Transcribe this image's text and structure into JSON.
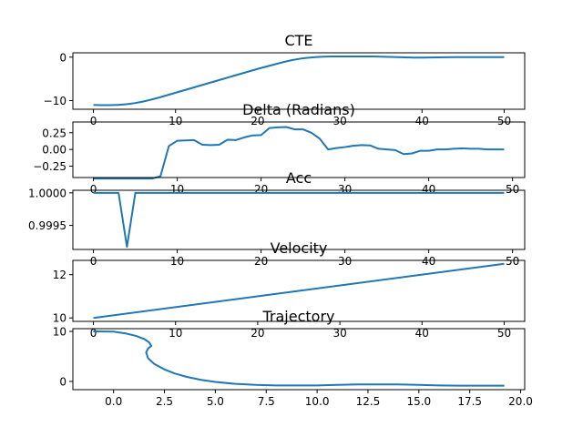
{
  "chart_data": [
    {
      "type": "line",
      "title": "CTE",
      "xlabel": "",
      "ylabel": "",
      "xlim": [
        -2.5,
        52.5
      ],
      "ylim": [
        -12.0,
        1.0
      ],
      "xticks": [
        0,
        10,
        20,
        30,
        40,
        50
      ],
      "xticklabels": [
        "0",
        "10",
        "20",
        "30",
        "40",
        "50"
      ],
      "yticks": [
        -10,
        0
      ],
      "yticklabels": [
        "−10",
        "0"
      ],
      "grid": false,
      "color": "#1f77b4",
      "series": [
        {
          "x": [
            0,
            1,
            2,
            3,
            4,
            5,
            6,
            7,
            8,
            9,
            10,
            11,
            12,
            13,
            14,
            15,
            16,
            17,
            18,
            19,
            20,
            21,
            22,
            23,
            24,
            25,
            26,
            27,
            28,
            29,
            30,
            31,
            32,
            33,
            34,
            35,
            36,
            37,
            38,
            39,
            40,
            41,
            42,
            43,
            44,
            45,
            46,
            47,
            48,
            49,
            50
          ],
          "y": [
            -11.0,
            -11.05,
            -11.05,
            -11.0,
            -10.85,
            -10.6,
            -10.25,
            -9.8,
            -9.3,
            -8.75,
            -8.2,
            -7.65,
            -7.1,
            -6.55,
            -6.0,
            -5.45,
            -4.9,
            -4.35,
            -3.8,
            -3.25,
            -2.7,
            -2.2,
            -1.7,
            -1.2,
            -0.75,
            -0.4,
            -0.15,
            0.0,
            0.1,
            0.15,
            0.15,
            0.15,
            0.15,
            0.15,
            0.15,
            0.1,
            0.05,
            0.0,
            -0.05,
            -0.1,
            -0.1,
            -0.08,
            -0.05,
            -0.03,
            0.0,
            0.0,
            0.0,
            0.0,
            0.0,
            0.0,
            0.0
          ]
        }
      ]
    },
    {
      "type": "line",
      "title": "Delta (Radians)",
      "xlabel": "",
      "ylabel": "",
      "xlim": [
        -2.45,
        51.45
      ],
      "ylim": [
        -0.42,
        0.41
      ],
      "xticks": [
        0,
        10,
        20,
        30,
        40,
        50
      ],
      "xticklabels": [
        "0",
        "10",
        "20",
        "30",
        "40",
        "50"
      ],
      "yticks": [
        -0.25,
        0.0,
        0.25
      ],
      "yticklabels": [
        "−0.25",
        "0.00",
        "0.25"
      ],
      "grid": false,
      "color": "#1f77b4",
      "series": [
        {
          "x": [
            0,
            1,
            2,
            3,
            4,
            5,
            6,
            7,
            8,
            9,
            10,
            11,
            12,
            13,
            14,
            15,
            16,
            17,
            18,
            19,
            20,
            21,
            22,
            23,
            24,
            25,
            26,
            27,
            28,
            29,
            30,
            31,
            32,
            33,
            34,
            35,
            36,
            37,
            38,
            39,
            40,
            41,
            42,
            43,
            44,
            45,
            46,
            47,
            48,
            49
          ],
          "y": [
            -0.436,
            -0.436,
            -0.436,
            -0.436,
            -0.436,
            -0.436,
            -0.436,
            -0.436,
            -0.4,
            0.05,
            0.13,
            0.135,
            0.14,
            0.07,
            0.065,
            0.07,
            0.145,
            0.14,
            0.18,
            0.21,
            0.215,
            0.32,
            0.33,
            0.335,
            0.3,
            0.3,
            0.25,
            0.16,
            0.0,
            0.02,
            0.035,
            0.055,
            0.065,
            0.06,
            0.01,
            0.0,
            -0.01,
            -0.07,
            -0.06,
            -0.02,
            -0.02,
            0.0,
            0.0,
            0.01,
            0.015,
            0.01,
            0.01,
            0.0,
            0.0,
            0.0
          ]
        }
      ]
    },
    {
      "type": "line",
      "title": "Acc",
      "xlabel": "",
      "ylabel": "",
      "xlim": [
        -2.45,
        51.45
      ],
      "ylim": [
        0.99913,
        1.00004
      ],
      "xticks": [
        0,
        10,
        20,
        30,
        40,
        50
      ],
      "xticklabels": [
        "0",
        "10",
        "20",
        "30",
        "40",
        "50"
      ],
      "yticks": [
        0.9995,
        1.0
      ],
      "yticklabels": [
        "0.9995",
        "1.0000"
      ],
      "grid": false,
      "color": "#1f77b4",
      "series": [
        {
          "x": [
            0,
            1,
            2,
            3,
            4,
            5,
            6,
            7,
            8,
            9,
            10,
            11,
            12,
            13,
            14,
            15,
            16,
            17,
            18,
            19,
            20,
            21,
            22,
            23,
            24,
            25,
            26,
            27,
            28,
            29,
            30,
            31,
            32,
            33,
            34,
            35,
            36,
            37,
            38,
            39,
            40,
            41,
            42,
            43,
            44,
            45,
            46,
            47,
            48,
            49
          ],
          "y": [
            1.0,
            1.0,
            1.0,
            1.0,
            0.99917,
            1.0,
            1.0,
            1.0,
            1.0,
            1.0,
            1.0,
            1.0,
            1.0,
            1.0,
            1.0,
            1.0,
            1.0,
            1.0,
            1.0,
            1.0,
            1.0,
            1.0,
            1.0,
            1.0,
            1.0,
            1.0,
            1.0,
            1.0,
            1.0,
            1.0,
            1.0,
            1.0,
            1.0,
            1.0,
            1.0,
            1.0,
            1.0,
            1.0,
            1.0,
            1.0,
            1.0,
            1.0,
            1.0,
            1.0,
            1.0,
            1.0,
            1.0,
            1.0,
            1.0,
            1.0
          ]
        }
      ]
    },
    {
      "type": "line",
      "title": "Velocity",
      "xlabel": "",
      "ylabel": "",
      "xlim": [
        -2.5,
        52.5
      ],
      "ylim": [
        9.84,
        12.66
      ],
      "xticks": [
        0,
        10,
        20,
        30,
        40,
        50
      ],
      "xticklabels": [
        "0",
        "10",
        "20",
        "30",
        "40",
        "50"
      ],
      "yticks": [
        10,
        12
      ],
      "yticklabels": [
        "10",
        "12"
      ],
      "grid": false,
      "color": "#1f77b4",
      "series": [
        {
          "x": [
            0,
            50
          ],
          "y": [
            10.0,
            12.5
          ]
        }
      ]
    },
    {
      "type": "line",
      "title": "Trajectory",
      "xlabel": "",
      "ylabel": "",
      "xlim": [
        -2.0,
        20.2
      ],
      "ylim": [
        -1.65,
        10.55
      ],
      "xticks": [
        0.0,
        2.5,
        5.0,
        7.5,
        10.0,
        12.5,
        15.0,
        17.5,
        20.0
      ],
      "xticklabels": [
        "0.0",
        "2.5",
        "5.0",
        "7.5",
        "10.0",
        "12.5",
        "15.0",
        "17.5",
        "20.0"
      ],
      "yticks": [
        0,
        10
      ],
      "yticklabels": [
        "0",
        "10"
      ],
      "grid": false,
      "color": "#1f77b4",
      "series": [
        {
          "x": [
            -1.0,
            0.0,
            0.6,
            1.1,
            1.5,
            1.75,
            1.85,
            1.7,
            1.6,
            1.7,
            2.0,
            2.5,
            3.0,
            3.6,
            4.3,
            5.0,
            6.0,
            7.0,
            8.0,
            9.0,
            10.0,
            11.0,
            12.0,
            13.0,
            14.0,
            15.0,
            16.0,
            17.0,
            18.0,
            19.2
          ],
          "y": [
            10.0,
            9.95,
            9.6,
            9.1,
            8.5,
            7.8,
            7.1,
            6.6,
            5.8,
            4.6,
            3.5,
            2.4,
            1.6,
            0.9,
            0.3,
            -0.1,
            -0.5,
            -0.7,
            -0.8,
            -0.8,
            -0.8,
            -0.7,
            -0.6,
            -0.6,
            -0.6,
            -0.7,
            -0.8,
            -0.85,
            -0.85,
            -0.85
          ]
        }
      ]
    }
  ]
}
